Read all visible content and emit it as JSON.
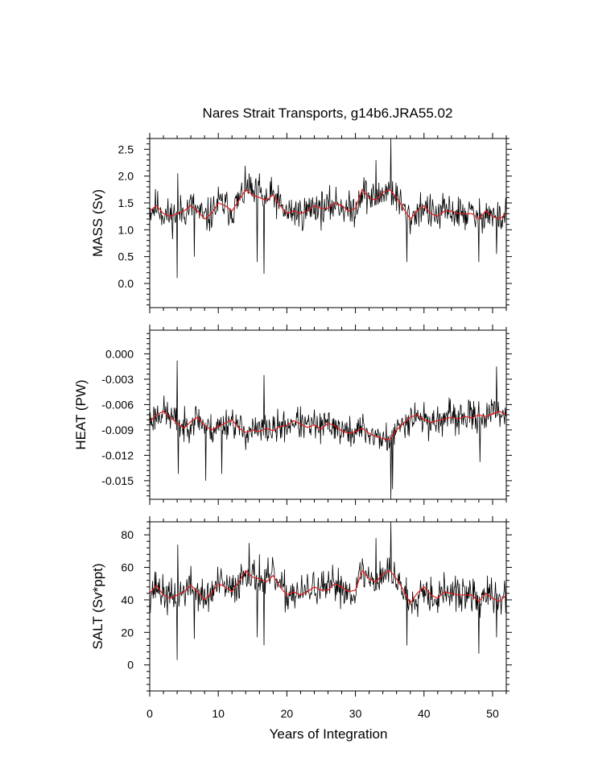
{
  "chart_data": {
    "type": "line",
    "title": "Nares Strait Transports, g14b6.JRA55.02",
    "xlabel": "Years of Integration",
    "xlim": [
      0,
      52
    ],
    "xticks": [
      0,
      10,
      20,
      30,
      40,
      50
    ],
    "xtick_labels": [
      "0",
      "10",
      "20",
      "30",
      "40",
      "50"
    ],
    "legend": "none",
    "series_style": {
      "monthly": "#000000",
      "smoothed": "#e41a1c"
    },
    "panels": [
      {
        "name": "mass",
        "ylabel": "MASS (Sv)",
        "ylim": [
          -0.45,
          2.7
        ],
        "yticks": [
          0.0,
          0.5,
          1.0,
          1.5,
          2.0,
          2.5
        ],
        "ytick_labels": [
          "0.0",
          "0.5",
          "1.0",
          "1.5",
          "2.0",
          "2.5"
        ],
        "smoothed_x": [
          0,
          1,
          2,
          3,
          4,
          5,
          6,
          7,
          8,
          9,
          10,
          11,
          12,
          13,
          14,
          15,
          16,
          17,
          18,
          19,
          20,
          21,
          22,
          23,
          24,
          25,
          26,
          27,
          28,
          29,
          30,
          31,
          32,
          33,
          34,
          35,
          36,
          37,
          38,
          39,
          40,
          41,
          42,
          43,
          44,
          45,
          46,
          47,
          48,
          49,
          50,
          51,
          52
        ],
        "smoothed_y": [
          1.35,
          1.45,
          1.3,
          1.25,
          1.3,
          1.35,
          1.45,
          1.35,
          1.2,
          1.3,
          1.5,
          1.45,
          1.35,
          1.55,
          1.75,
          1.65,
          1.6,
          1.55,
          1.65,
          1.45,
          1.3,
          1.35,
          1.3,
          1.35,
          1.45,
          1.4,
          1.4,
          1.5,
          1.45,
          1.35,
          1.4,
          1.75,
          1.6,
          1.55,
          1.7,
          1.75,
          1.6,
          1.4,
          1.2,
          1.35,
          1.45,
          1.3,
          1.25,
          1.35,
          1.35,
          1.3,
          1.3,
          1.3,
          1.2,
          1.35,
          1.25,
          1.2,
          1.3
        ],
        "spikes": [
          [
            4.0,
            0.1
          ],
          [
            6.5,
            0.5
          ],
          [
            15.7,
            0.4
          ],
          [
            16.7,
            0.18
          ],
          [
            35.2,
            2.7
          ],
          [
            37.5,
            0.4
          ],
          [
            48.0,
            0.4
          ],
          [
            50.6,
            0.55
          ],
          [
            4.1,
            2.05
          ],
          [
            14.5,
            2.05
          ],
          [
            16.0,
            2.05
          ],
          [
            33.0,
            2.3
          ]
        ],
        "noise_amp": 0.28,
        "seed": 11
      },
      {
        "name": "heat",
        "ylabel": "HEAT (PW)",
        "ylim": [
          -0.0172,
          0.0028
        ],
        "yticks": [
          0.0,
          -0.003,
          -0.006,
          -0.009,
          -0.012,
          -0.015
        ],
        "ytick_labels": [
          "0.000",
          "-0.003",
          "-0.006",
          "-0.009",
          "-0.012",
          "-0.015"
        ],
        "smoothed_x": [
          0,
          1,
          2,
          3,
          4,
          5,
          6,
          7,
          8,
          9,
          10,
          11,
          12,
          13,
          14,
          15,
          16,
          17,
          18,
          19,
          20,
          21,
          22,
          23,
          24,
          25,
          26,
          27,
          28,
          29,
          30,
          31,
          32,
          33,
          34,
          35,
          36,
          37,
          38,
          39,
          40,
          41,
          42,
          43,
          44,
          45,
          46,
          47,
          48,
          49,
          50,
          51,
          52
        ],
        "smoothed_y": [
          -0.008,
          -0.0072,
          -0.0068,
          -0.0075,
          -0.0082,
          -0.0088,
          -0.008,
          -0.0075,
          -0.0085,
          -0.009,
          -0.0086,
          -0.0082,
          -0.0078,
          -0.0088,
          -0.0093,
          -0.009,
          -0.0092,
          -0.0088,
          -0.0091,
          -0.0086,
          -0.0085,
          -0.0079,
          -0.0083,
          -0.0087,
          -0.0084,
          -0.0089,
          -0.0082,
          -0.0085,
          -0.0091,
          -0.0094,
          -0.0092,
          -0.0088,
          -0.0094,
          -0.0098,
          -0.01,
          -0.0102,
          -0.009,
          -0.0082,
          -0.0075,
          -0.0072,
          -0.0078,
          -0.0081,
          -0.0079,
          -0.0077,
          -0.0075,
          -0.0077,
          -0.0074,
          -0.0076,
          -0.0072,
          -0.0074,
          -0.0071,
          -0.0068,
          -0.0072
        ],
        "spikes": [
          [
            4.0,
            -0.0008
          ],
          [
            4.2,
            -0.0142
          ],
          [
            8.2,
            -0.015
          ],
          [
            10.5,
            -0.0142
          ],
          [
            16.7,
            -0.0025
          ],
          [
            35.2,
            -0.0172
          ],
          [
            35.4,
            -0.016
          ],
          [
            50.6,
            -0.0015
          ],
          [
            48.2,
            -0.0128
          ]
        ],
        "noise_amp": 0.0016,
        "seed": 23
      },
      {
        "name": "salt",
        "ylabel": "SALT (Sv*ppt)",
        "ylim": [
          -16,
          88
        ],
        "yticks": [
          0,
          20,
          40,
          60,
          80
        ],
        "ytick_labels": [
          "0",
          "20",
          "40",
          "60",
          "80"
        ],
        "smoothed_x": [
          0,
          1,
          2,
          3,
          4,
          5,
          6,
          7,
          8,
          9,
          10,
          11,
          12,
          13,
          14,
          15,
          16,
          17,
          18,
          19,
          20,
          21,
          22,
          23,
          24,
          25,
          26,
          27,
          28,
          29,
          30,
          31,
          32,
          33,
          34,
          35,
          36,
          37,
          38,
          39,
          40,
          41,
          42,
          43,
          44,
          45,
          46,
          47,
          48,
          49,
          50,
          51,
          52
        ],
        "smoothed_y": [
          44,
          49,
          43,
          41,
          43,
          45,
          49,
          45,
          40,
          44,
          50,
          48,
          45,
          51,
          58,
          54,
          53,
          51,
          55,
          48,
          43,
          45,
          43,
          45,
          48,
          46,
          46,
          50,
          48,
          45,
          46,
          58,
          53,
          51,
          56,
          58,
          53,
          46,
          38,
          44,
          48,
          43,
          41,
          45,
          44,
          43,
          43,
          43,
          39,
          44,
          41,
          39,
          43
        ],
        "spikes": [
          [
            4.0,
            3
          ],
          [
            6.5,
            16
          ],
          [
            15.7,
            17
          ],
          [
            16.7,
            12
          ],
          [
            35.2,
            88
          ],
          [
            37.5,
            12
          ],
          [
            48.0,
            7
          ],
          [
            50.6,
            17
          ],
          [
            4.1,
            74
          ],
          [
            14.5,
            75
          ],
          [
            16.0,
            68
          ],
          [
            33.0,
            78
          ]
        ],
        "noise_amp": 9.5,
        "seed": 37
      }
    ]
  }
}
